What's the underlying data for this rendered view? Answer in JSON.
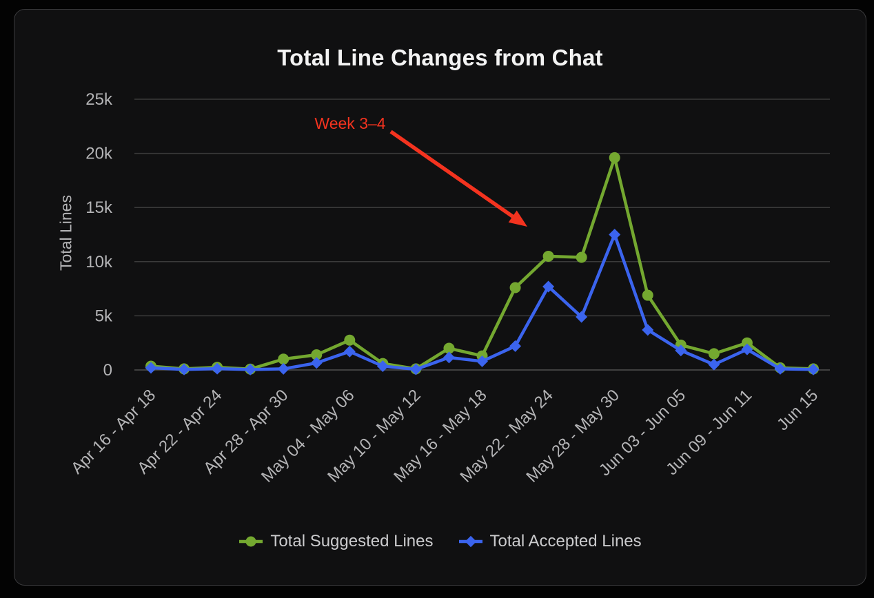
{
  "chart_data": {
    "type": "line",
    "title": "Total Line Changes from Chat",
    "ylabel": "Total Lines",
    "xlabel": "",
    "ylim": [
      0,
      25000
    ],
    "grid": true,
    "legend_position": "bottom",
    "y_tick_values": [
      0,
      5000,
      10000,
      15000,
      20000,
      25000
    ],
    "y_tick_labels": [
      "0",
      "5k",
      "10k",
      "15k",
      "20k",
      "25k"
    ],
    "n_points": 21,
    "x_tick_every": 2,
    "x_tick_labels": [
      "Apr 16 - Apr 18",
      "Apr 22 - Apr 24",
      "Apr 28 - Apr 30",
      "May 04 - May 06",
      "May 10 - May 12",
      "May 16 - May 18",
      "May 22 - May 24",
      "May 28 - May 30",
      "Jun 03 - Jun 05",
      "Jun 09 - Jun 11",
      "Jun 15"
    ],
    "series": [
      {
        "name": "Total Suggested Lines",
        "color": "#74a830",
        "marker": "circle",
        "values": [
          350,
          100,
          250,
          80,
          1000,
          1400,
          2750,
          600,
          100,
          2000,
          1300,
          7600,
          10500,
          10400,
          19600,
          6900,
          2300,
          1500,
          2500,
          200,
          100
        ]
      },
      {
        "name": "Total Accepted Lines",
        "color": "#3b64ee",
        "marker": "diamond",
        "values": [
          200,
          50,
          120,
          40,
          100,
          650,
          1700,
          350,
          60,
          1150,
          800,
          2200,
          7700,
          4900,
          12500,
          3700,
          1800,
          500,
          1900,
          100,
          50
        ]
      }
    ],
    "annotation": {
      "text": "Week 3–4",
      "color": "#f4331f"
    }
  },
  "colors": {
    "page_background": "#030303",
    "card_background": "#101011",
    "card_border": "#3a3a3c",
    "grid_line": "#3b3b3b",
    "zero_line": "#515151",
    "tick_text": "#b4b4b6",
    "title_text": "#f3f3f3",
    "legend_text": "#cbcbcd"
  }
}
